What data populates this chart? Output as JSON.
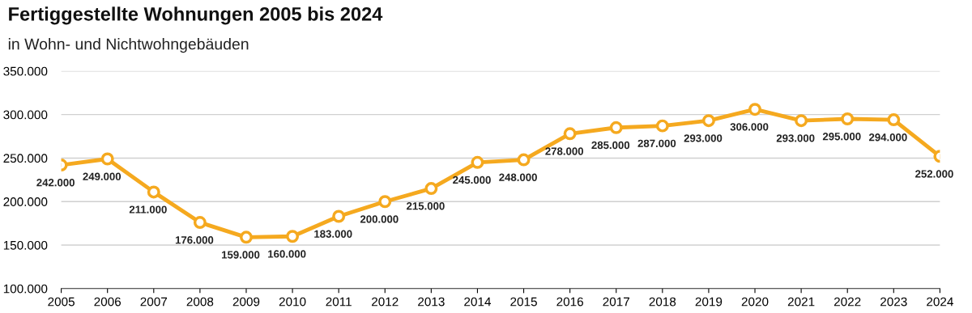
{
  "chart_data": {
    "type": "line",
    "title": "Fertiggestellte Wohnungen 2005 bis 2024",
    "subtitle": "in Wohn- und Nichtwohngebäuden",
    "x": [
      2005,
      2006,
      2007,
      2008,
      2009,
      2010,
      2011,
      2012,
      2013,
      2014,
      2015,
      2016,
      2017,
      2018,
      2019,
      2020,
      2021,
      2022,
      2023,
      2024
    ],
    "series": [
      {
        "color": "#f5a91f",
        "values": [
          242000,
          249000,
          211000,
          176000,
          159000,
          160000,
          183000,
          200000,
          215000,
          245000,
          248000,
          278000,
          285000,
          287000,
          293000,
          306000,
          293000,
          295000,
          294000,
          252000
        ],
        "value_labels": [
          "242.000",
          "249.000",
          "211.000",
          "176.000",
          "159.000",
          "160.000",
          "183.000",
          "200.000",
          "215.000",
          "245.000",
          "248.000",
          "278.000",
          "285.000",
          "287.000",
          "293.000",
          "306.000",
          "293.000",
          "295.000",
          "294.000",
          "252.000"
        ]
      }
    ],
    "xlim": [
      2005,
      2024
    ],
    "xticks": [
      2005,
      2006,
      2007,
      2008,
      2009,
      2010,
      2011,
      2012,
      2013,
      2014,
      2015,
      2016,
      2017,
      2018,
      2019,
      2020,
      2021,
      2022,
      2023,
      2024
    ],
    "ylim": [
      100000,
      350000
    ],
    "yticks": [
      {
        "value": 100000,
        "label": "100.000"
      },
      {
        "value": 150000,
        "label": "150.000"
      },
      {
        "value": 200000,
        "label": "200.000"
      },
      {
        "value": 250000,
        "label": "250.000"
      },
      {
        "value": 300000,
        "label": "300.000"
      },
      {
        "value": 350000,
        "label": "350.000"
      }
    ],
    "grid": "y",
    "marker": "circle",
    "line_style": "solid"
  }
}
